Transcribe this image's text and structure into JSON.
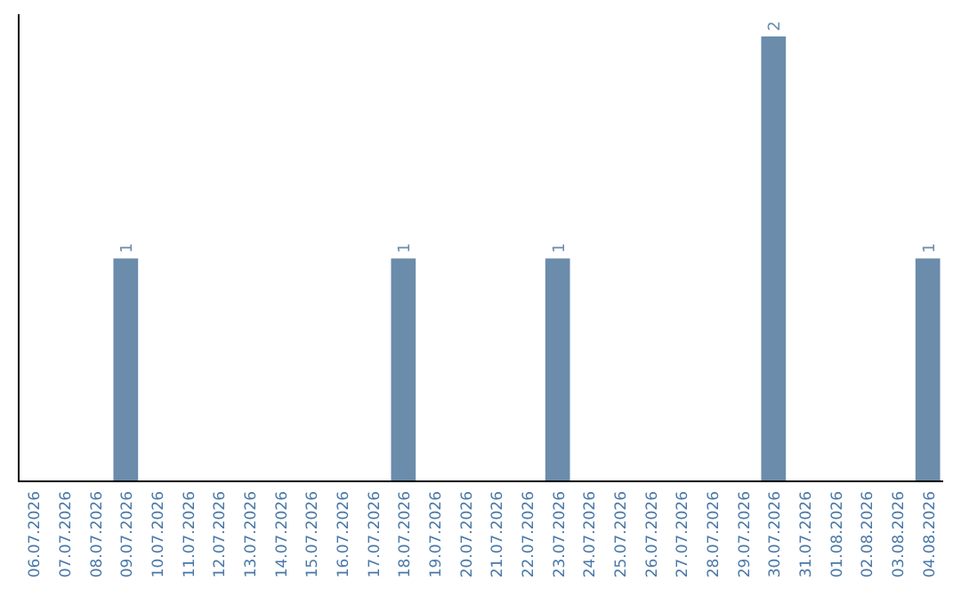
{
  "chart_data": {
    "type": "bar",
    "categories": [
      "06.07.2026",
      "07.07.2026",
      "08.07.2026",
      "09.07.2026",
      "10.07.2026",
      "11.07.2026",
      "12.07.2026",
      "13.07.2026",
      "14.07.2026",
      "15.07.2026",
      "16.07.2026",
      "17.07.2026",
      "18.07.2026",
      "19.07.2026",
      "20.07.2026",
      "21.07.2026",
      "22.07.2026",
      "23.07.2026",
      "24.07.2026",
      "25.07.2026",
      "26.07.2026",
      "27.07.2026",
      "28.07.2026",
      "29.07.2026",
      "30.07.2026",
      "31.07.2026",
      "01.08.2026",
      "02.08.2026",
      "03.08.2026",
      "04.08.2026"
    ],
    "values": [
      0,
      0,
      0,
      1,
      0,
      0,
      0,
      0,
      0,
      0,
      0,
      0,
      1,
      0,
      0,
      0,
      0,
      1,
      0,
      0,
      0,
      0,
      0,
      0,
      2,
      0,
      0,
      0,
      0,
      1
    ],
    "value_labels": [
      null,
      null,
      null,
      "1",
      null,
      null,
      null,
      null,
      null,
      null,
      null,
      null,
      "1",
      null,
      null,
      null,
      null,
      "1",
      null,
      null,
      null,
      null,
      null,
      null,
      "2",
      null,
      null,
      null,
      null,
      "1"
    ],
    "color": "#6b8cab",
    "ylim": [
      0,
      2.1
    ],
    "grid": false
  }
}
